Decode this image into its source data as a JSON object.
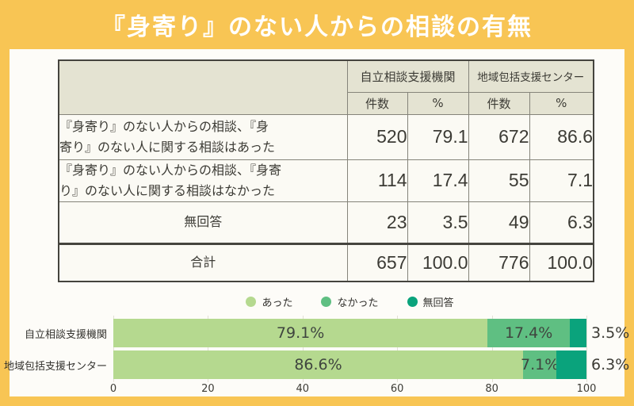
{
  "title": "『身寄り』のない人からの相談の有無",
  "colors": {
    "frame": "#f8c554",
    "panel": "#fdfcf8",
    "table_header_bg": "#e4e3d2",
    "table_cell_bg": "#fbfaf4",
    "table_border": "#45443e",
    "title_text": "#ffffff"
  },
  "table": {
    "column_groups": {
      "g1": "自立相談支援機関",
      "g2": "地域包括支援センター"
    },
    "sub_headers": [
      "件数",
      "%",
      "件数",
      "%"
    ],
    "rows": [
      {
        "label": "『身寄り』のない人からの相談、『身\n寄り』のない人に関する相談はあった",
        "values": [
          "520",
          "79.1",
          "672",
          "86.6"
        ]
      },
      {
        "label": "『身寄り』のない人からの相談、『身寄\nり』のない人に関する相談はなかった",
        "values": [
          "114",
          "17.4",
          "55",
          "7.1"
        ]
      },
      {
        "label": "無回答",
        "values": [
          "23",
          "3.5",
          "49",
          "6.3"
        ]
      },
      {
        "label": "合計",
        "values": [
          "657",
          "100.0",
          "776",
          "100.0"
        ]
      }
    ]
  },
  "chart_data": {
    "type": "bar",
    "horizontal": true,
    "stacked": true,
    "title": "",
    "categories": [
      "自立相談支援機関",
      "地域包括支援センター"
    ],
    "series": [
      {
        "name": "あった",
        "color": "#b5d98f",
        "values": [
          79.1,
          86.6
        ]
      },
      {
        "name": "なかった",
        "color": "#5fbf82",
        "values": [
          17.4,
          7.1
        ]
      },
      {
        "name": "無回答",
        "color": "#0aa37c",
        "values": [
          3.5,
          6.3
        ]
      }
    ],
    "xlim": [
      0,
      100
    ],
    "x_ticks": [
      0,
      20,
      40,
      60,
      80,
      100
    ],
    "legend_position": "top",
    "value_label_suffix": "%",
    "grid": true
  }
}
